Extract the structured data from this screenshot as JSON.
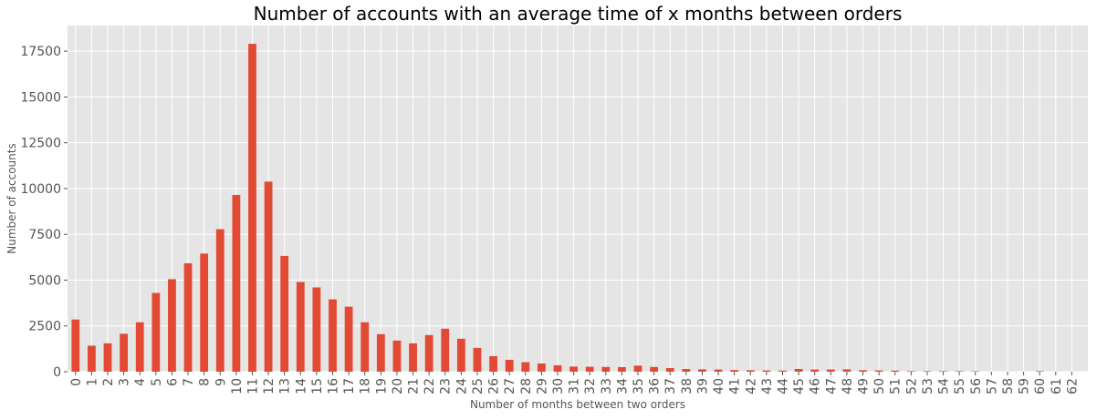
{
  "chart_data": {
    "type": "bar",
    "title": "Number of accounts with an average time of x months between orders",
    "xlabel": "Number of months between two orders",
    "ylabel": "Number of accounts",
    "categories": [
      "0",
      "1",
      "2",
      "3",
      "4",
      "5",
      "6",
      "7",
      "8",
      "9",
      "10",
      "11",
      "12",
      "13",
      "14",
      "15",
      "16",
      "17",
      "18",
      "19",
      "20",
      "21",
      "22",
      "23",
      "24",
      "25",
      "26",
      "27",
      "28",
      "29",
      "30",
      "31",
      "32",
      "33",
      "34",
      "35",
      "36",
      "37",
      "38",
      "39",
      "40",
      "41",
      "42",
      "43",
      "44",
      "45",
      "46",
      "47",
      "48",
      "49",
      "50",
      "51",
      "52",
      "53",
      "54",
      "55",
      "56",
      "57",
      "58",
      "59",
      "60",
      "61",
      "62"
    ],
    "values": [
      2850,
      1420,
      1550,
      2070,
      2700,
      4300,
      5050,
      5920,
      6450,
      7780,
      9650,
      17900,
      10380,
      6320,
      4900,
      4600,
      3950,
      3550,
      2700,
      2050,
      1700,
      1550,
      2000,
      2350,
      1800,
      1300,
      850,
      650,
      520,
      450,
      350,
      280,
      270,
      260,
      250,
      330,
      260,
      200,
      150,
      130,
      120,
      90,
      80,
      70,
      60,
      150,
      120,
      120,
      130,
      80,
      70,
      60,
      30,
      30,
      30,
      30,
      20,
      0,
      0,
      0,
      30,
      0,
      0
    ],
    "ylim": [
      0,
      18900
    ],
    "yticks": [
      0,
      2500,
      5000,
      7500,
      10000,
      12500,
      15000,
      17500
    ],
    "grid": true,
    "bar_color": "#E24A33",
    "background_color": "#E5E5E5",
    "grid_color": "#FFFFFF",
    "text_color": "#555555"
  }
}
